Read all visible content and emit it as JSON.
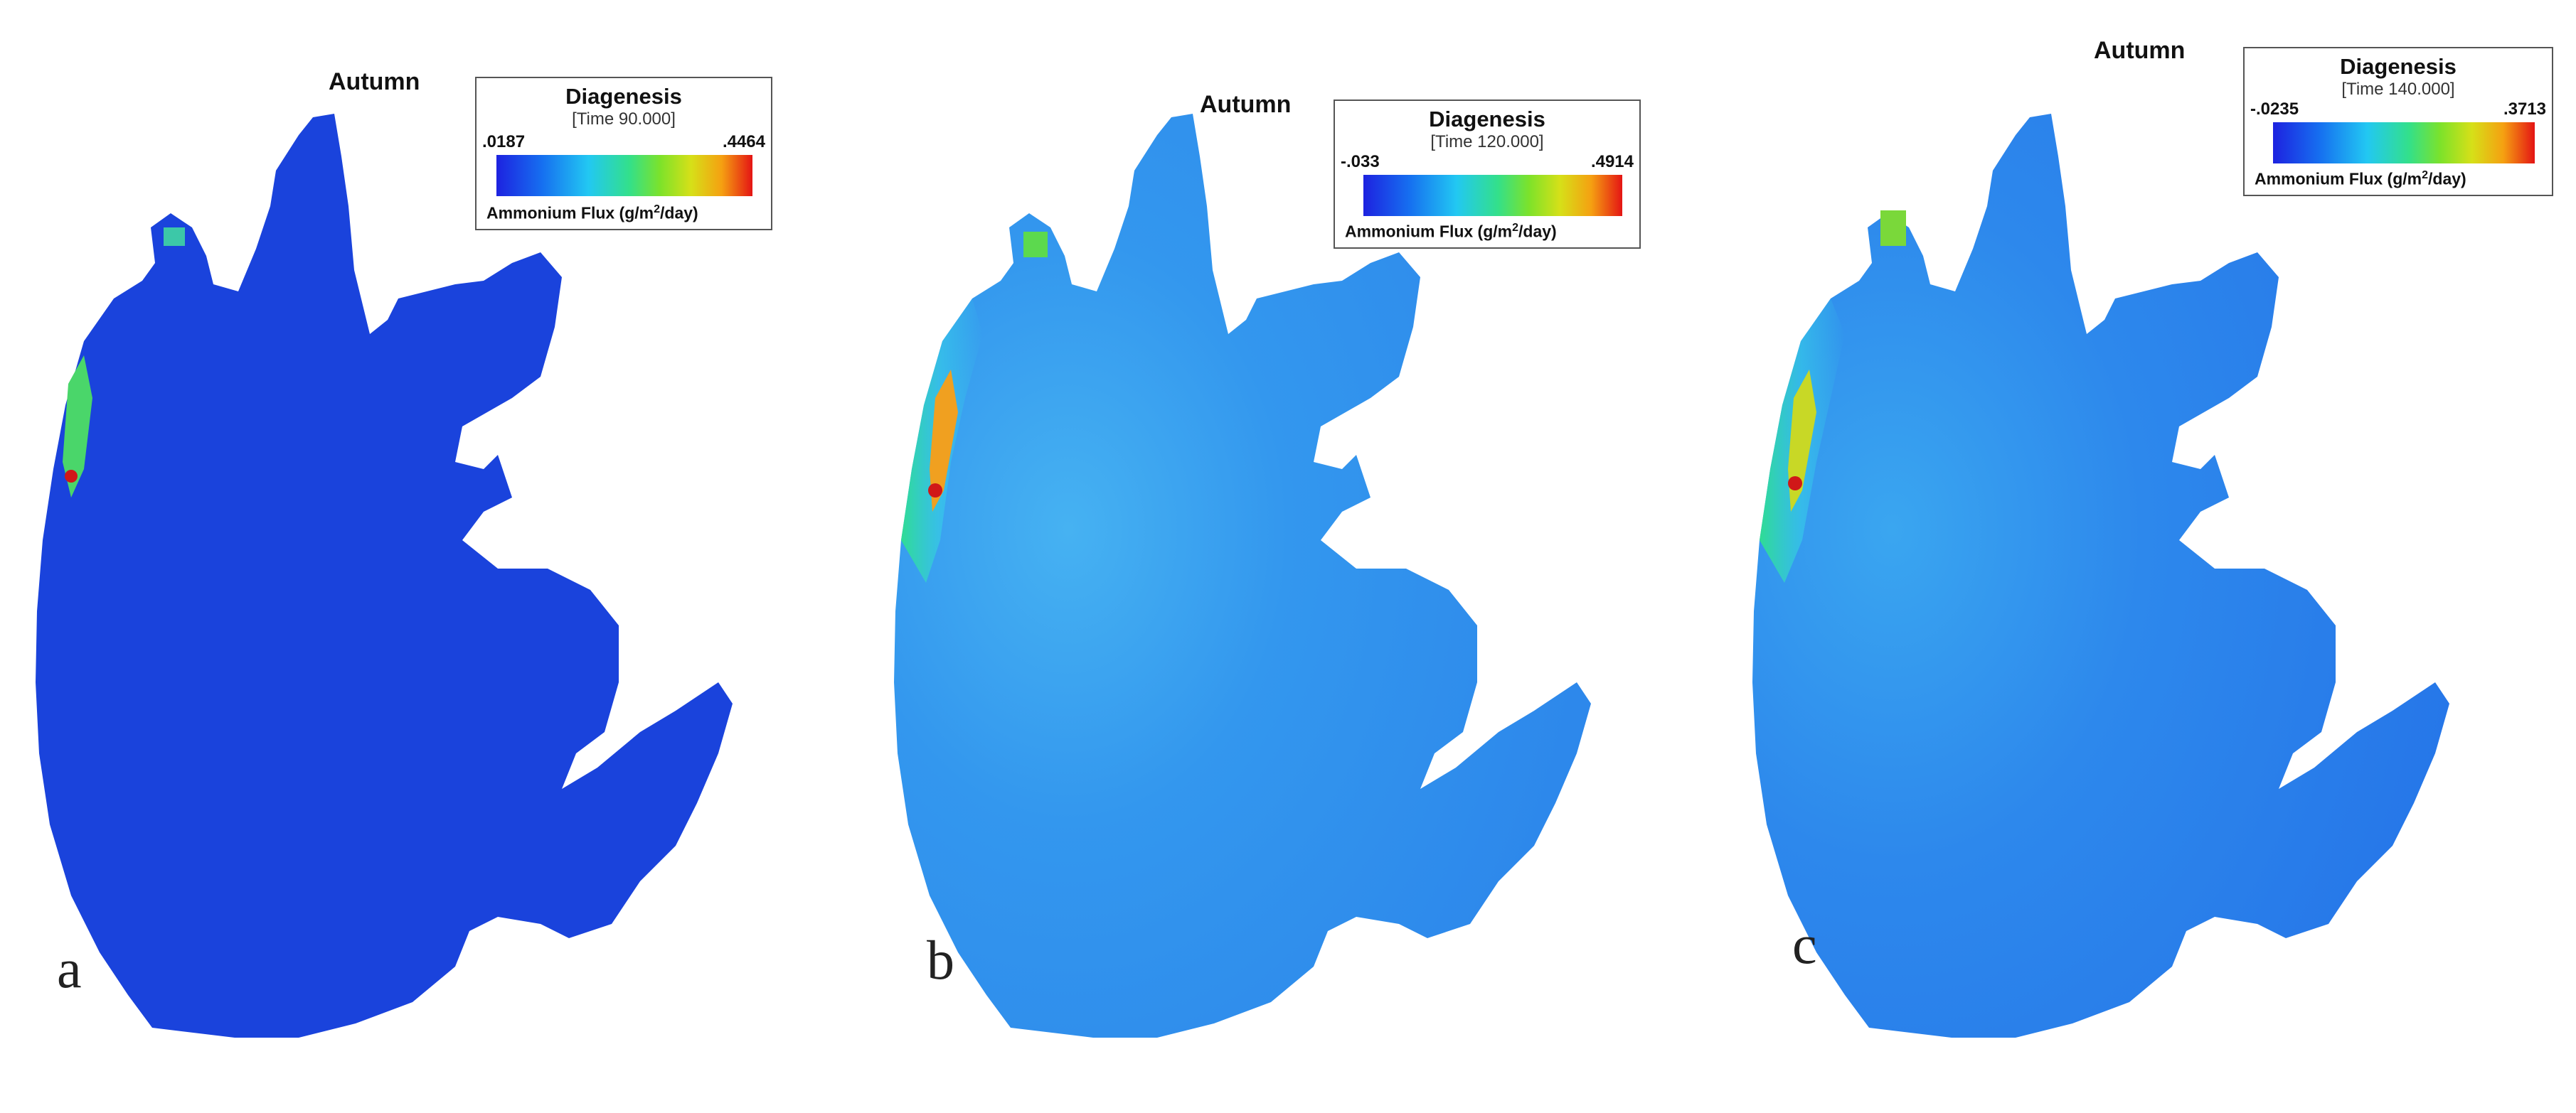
{
  "panels": [
    {
      "letter": "a",
      "season": "Autumn",
      "legend": {
        "title": "Diagenesis",
        "time": "[Time 90.000]",
        "min": ".0187",
        "max": ".4464",
        "label_pre": "Ammonium Flux (g/m",
        "label_sup": "2",
        "label_post": "/day)"
      },
      "base_color": "#1a43dc"
    },
    {
      "letter": "b",
      "season": "Autumn",
      "legend": {
        "title": "Diagenesis",
        "time": "[Time 120.000]",
        "min": "-.033",
        "max": ".4914",
        "label_pre": "Ammonium Flux (g/m",
        "label_sup": "2",
        "label_post": "/day)"
      },
      "base_color": "#2a86ec"
    },
    {
      "letter": "c",
      "season": "Autumn",
      "legend": {
        "title": "Diagenesis",
        "time": "[Time 140.000]",
        "min": "-.0235",
        "max": ".3713",
        "label_pre": "Ammonium Flux (g/m",
        "label_sup": "2",
        "label_post": "/day)"
      },
      "base_color": "#2878ea"
    }
  ],
  "colors": {
    "shoreline_green": "#30d080",
    "hotspot_red": "#d01818",
    "background": "#ffffff"
  }
}
